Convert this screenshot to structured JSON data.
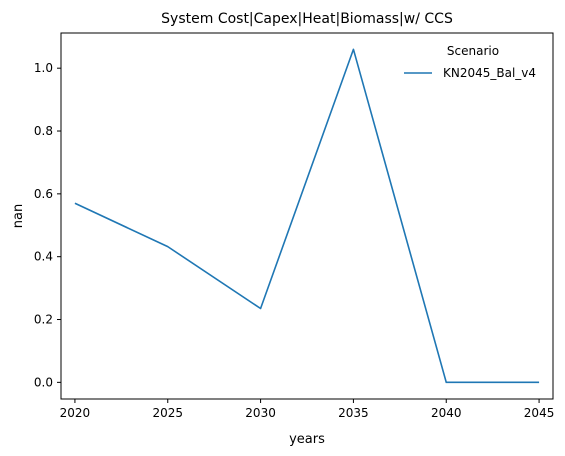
{
  "chart_data": {
    "type": "line",
    "title": "System Cost|Capex|Heat|Biomass|w/ CCS",
    "xlabel": "years",
    "ylabel": "nan",
    "x": [
      2020,
      2025,
      2030,
      2035,
      2040,
      2045
    ],
    "xticks": [
      "2020",
      "2025",
      "2030",
      "2035",
      "2040",
      "2045"
    ],
    "yticks": [
      "0.0",
      "0.2",
      "0.4",
      "0.6",
      "0.8",
      "1.0"
    ],
    "xlim": [
      2019.25,
      2045.75
    ],
    "ylim": [
      -0.053,
      1.112
    ],
    "grid": false,
    "legend": {
      "title": "Scenario",
      "position": "top-right"
    },
    "series": [
      {
        "name": "KN2045_Bal_v4",
        "color": "#1f77b4",
        "values": [
          0.57,
          0.432,
          0.235,
          1.06,
          0.0,
          0.0
        ]
      }
    ]
  }
}
